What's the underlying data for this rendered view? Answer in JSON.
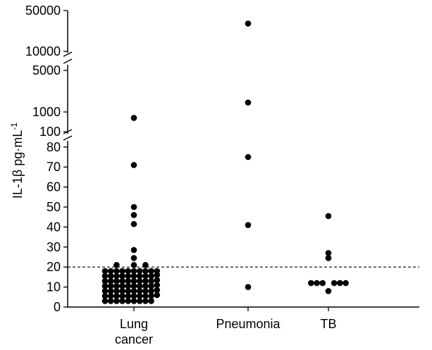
{
  "chart_data": {
    "type": "scatter",
    "title": "",
    "ylabel": "IL-1β pg·mL",
    "ylabel_superscript": "-1",
    "categories": [
      "Lung\ncancer",
      "Pneumonia",
      "TB"
    ],
    "y_axis_segments": [
      {
        "ticks": [
          0,
          10,
          20,
          30,
          40,
          50,
          60,
          70,
          80
        ],
        "range": [
          0,
          85
        ]
      },
      {
        "ticks": [
          100,
          1000
        ],
        "range": [
          90,
          1200
        ]
      },
      {
        "ticks": [
          5000,
          10000,
          50000
        ],
        "range": [
          4500,
          55000
        ]
      }
    ],
    "tick_labels": [
      "0",
      "10",
      "20",
      "30",
      "40",
      "50",
      "60",
      "70",
      "80",
      "100",
      "1000",
      "5000",
      "10000",
      "50000"
    ],
    "threshold_line": {
      "y": 20,
      "style": "dashed"
    },
    "series": [
      {
        "category": "Lung\ncancer",
        "points": [
          {
            "y": 3,
            "offset": -5
          },
          {
            "y": 5.5,
            "offset": -5
          },
          {
            "y": 8,
            "offset": -5
          },
          {
            "y": 10.5,
            "offset": -5
          },
          {
            "y": 13,
            "offset": -5
          },
          {
            "y": 15.5,
            "offset": -5
          },
          {
            "y": 18,
            "offset": -5
          },
          {
            "y": 3,
            "offset": -4
          },
          {
            "y": 5.5,
            "offset": -4
          },
          {
            "y": 8,
            "offset": -4
          },
          {
            "y": 10.5,
            "offset": -4
          },
          {
            "y": 13,
            "offset": -4
          },
          {
            "y": 15.5,
            "offset": -4
          },
          {
            "y": 18,
            "offset": -4
          },
          {
            "y": 3,
            "offset": -3
          },
          {
            "y": 5.5,
            "offset": -3
          },
          {
            "y": 8,
            "offset": -3
          },
          {
            "y": 10.5,
            "offset": -3
          },
          {
            "y": 13,
            "offset": -3
          },
          {
            "y": 15.5,
            "offset": -3
          },
          {
            "y": 18,
            "offset": -3
          },
          {
            "y": 21,
            "offset": -3
          },
          {
            "y": 3,
            "offset": -2
          },
          {
            "y": 5.5,
            "offset": -2
          },
          {
            "y": 8,
            "offset": -2
          },
          {
            "y": 10.5,
            "offset": -2
          },
          {
            "y": 13,
            "offset": -2
          },
          {
            "y": 15.5,
            "offset": -2
          },
          {
            "y": 18,
            "offset": -2
          },
          {
            "y": 3,
            "offset": -1
          },
          {
            "y": 5.5,
            "offset": -1
          },
          {
            "y": 8,
            "offset": -1
          },
          {
            "y": 10.5,
            "offset": -1
          },
          {
            "y": 13,
            "offset": -1
          },
          {
            "y": 15.5,
            "offset": -1
          },
          {
            "y": 18,
            "offset": -1
          },
          {
            "y": 3,
            "offset": 0
          },
          {
            "y": 5.5,
            "offset": 0
          },
          {
            "y": 8,
            "offset": 0
          },
          {
            "y": 10.5,
            "offset": 0
          },
          {
            "y": 13,
            "offset": 0
          },
          {
            "y": 15.5,
            "offset": 0
          },
          {
            "y": 18,
            "offset": 0
          },
          {
            "y": 21,
            "offset": 0
          },
          {
            "y": 24.5,
            "offset": 0
          },
          {
            "y": 28.5,
            "offset": 0
          },
          {
            "y": 3,
            "offset": 1
          },
          {
            "y": 5.5,
            "offset": 1
          },
          {
            "y": 8,
            "offset": 1
          },
          {
            "y": 10.5,
            "offset": 1
          },
          {
            "y": 13,
            "offset": 1
          },
          {
            "y": 15.5,
            "offset": 1
          },
          {
            "y": 18,
            "offset": 1
          },
          {
            "y": 3,
            "offset": 2
          },
          {
            "y": 5.5,
            "offset": 2
          },
          {
            "y": 8,
            "offset": 2
          },
          {
            "y": 10.5,
            "offset": 2
          },
          {
            "y": 13,
            "offset": 2
          },
          {
            "y": 15.5,
            "offset": 2
          },
          {
            "y": 18,
            "offset": 2
          },
          {
            "y": 21,
            "offset": 2
          },
          {
            "y": 3,
            "offset": 3
          },
          {
            "y": 5.5,
            "offset": 3
          },
          {
            "y": 8,
            "offset": 3
          },
          {
            "y": 10.5,
            "offset": 3
          },
          {
            "y": 13,
            "offset": 3
          },
          {
            "y": 15.5,
            "offset": 3
          },
          {
            "y": 18,
            "offset": 3
          },
          {
            "y": 6,
            "offset": 4
          },
          {
            "y": 8.5,
            "offset": 4
          },
          {
            "y": 11,
            "offset": 4
          },
          {
            "y": 13.5,
            "offset": 4
          },
          {
            "y": 16,
            "offset": 4
          },
          {
            "y": 18,
            "offset": 4
          },
          {
            "y": 41.5,
            "offset": 0
          },
          {
            "y": 46,
            "offset": 0
          },
          {
            "y": 50,
            "offset": 0
          },
          {
            "y": 71,
            "offset": 0
          },
          {
            "y": 500,
            "offset": 0
          }
        ]
      },
      {
        "category": "Pneumonia",
        "points": [
          {
            "y": 10,
            "offset": 0
          },
          {
            "y": 41,
            "offset": 0
          },
          {
            "y": 75,
            "offset": 0
          },
          {
            "y": 3000,
            "offset": 0
          },
          {
            "y": 30000,
            "offset": 0
          }
        ]
      },
      {
        "category": "TB",
        "points": [
          {
            "y": 12,
            "offset": -3
          },
          {
            "y": 12,
            "offset": -2
          },
          {
            "y": 12,
            "offset": -1
          },
          {
            "y": 12,
            "offset": 1
          },
          {
            "y": 12,
            "offset": 2
          },
          {
            "y": 12,
            "offset": 3
          },
          {
            "y": 8,
            "offset": 0
          },
          {
            "y": 24.5,
            "offset": 0
          },
          {
            "y": 27,
            "offset": 0
          },
          {
            "y": 45.5,
            "offset": 0
          }
        ]
      }
    ]
  },
  "style": {
    "dot_color": "#000000",
    "axis_color": "#000000"
  }
}
